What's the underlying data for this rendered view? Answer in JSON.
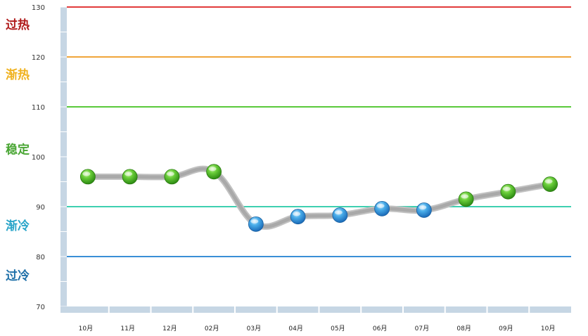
{
  "chart_data": {
    "type": "line",
    "categories": [
      "10月",
      "11月",
      "12月",
      "02月",
      "03月",
      "04月",
      "05月",
      "06月",
      "07月",
      "08月",
      "09月",
      "10月"
    ],
    "series": [
      {
        "values": [
          96,
          96,
          96,
          97,
          86.5,
          88,
          88.3,
          89.6,
          89.3,
          91.5,
          93,
          94.5
        ]
      }
    ],
    "yticks": [
      70,
      80,
      90,
      100,
      110,
      120,
      130
    ],
    "ylim": [
      70,
      130
    ],
    "grid": false,
    "threshold_lines": [
      {
        "value": 130,
        "color": "#e23b3b"
      },
      {
        "value": 120,
        "color": "#f0a53a"
      },
      {
        "value": 110,
        "color": "#59c93a"
      },
      {
        "value": 90,
        "color": "#3ecfb0"
      },
      {
        "value": 80,
        "color": "#3a8fd6"
      }
    ],
    "zones": [
      {
        "label": "过热",
        "value": 126.5,
        "color": "#b01a1a"
      },
      {
        "label": "渐热",
        "value": 116.5,
        "color": "#f0b21f"
      },
      {
        "label": "稳定",
        "value": 101.5,
        "color": "#4aa634"
      },
      {
        "label": "渐冷",
        "value": 86.2,
        "color": "#2aa5c9"
      },
      {
        "label": "过冷",
        "value": 76.2,
        "color": "#1d6fa8"
      }
    ],
    "point_colors": {
      "above_90": "#3fae2a",
      "below_90": "#2c94dc"
    }
  }
}
